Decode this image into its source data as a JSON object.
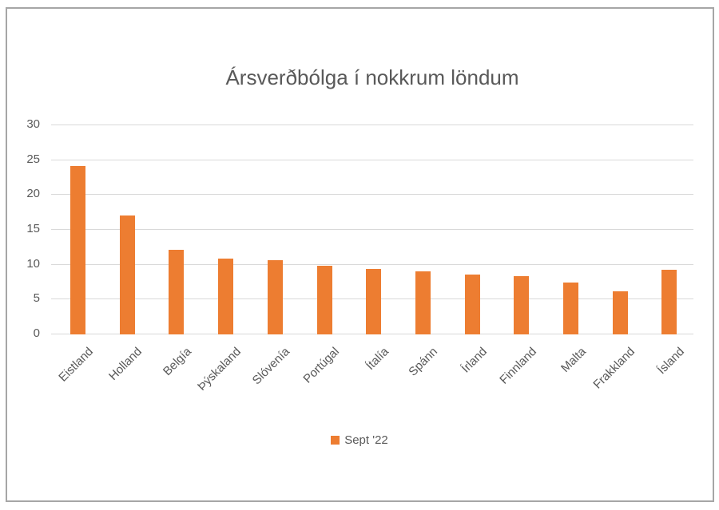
{
  "chart_data": {
    "type": "bar",
    "title": "Ársverðbólga í nokkrum löndum",
    "categories": [
      "Eistland",
      "Holland",
      "Belgía",
      "Þýskaland",
      "Slóvenía",
      "Portúgal",
      "Ítalía",
      "Spánn",
      "Írland",
      "Finnland",
      "Malta",
      "Frakkland",
      "Ísland"
    ],
    "series": [
      {
        "name": "Sept '22",
        "values": [
          24.2,
          17.1,
          12.1,
          10.9,
          10.6,
          9.8,
          9.4,
          9.0,
          8.6,
          8.4,
          7.4,
          6.2,
          9.3
        ]
      }
    ],
    "xlabel": "",
    "ylabel": "",
    "ylim": [
      0,
      30
    ],
    "yticks": [
      0,
      5,
      10,
      15,
      20,
      25,
      30
    ],
    "grid": true,
    "legend_position": "bottom",
    "colors": {
      "bar": "#ed7d31",
      "gridline": "#d9d9d9",
      "axis_text": "#595959",
      "title_text": "#595959",
      "frame_border": "#a6a6a6"
    }
  }
}
